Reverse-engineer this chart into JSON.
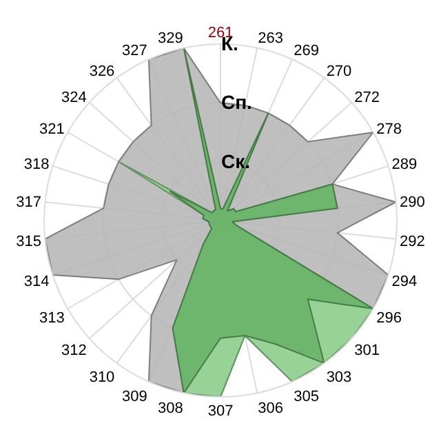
{
  "chart_data": {
    "type": "radar",
    "categories": [
      "261",
      "263",
      "269",
      "270",
      "272",
      "278",
      "289",
      "290",
      "292",
      "294",
      "296",
      "301",
      "303",
      "305",
      "306",
      "307",
      "308",
      "309",
      "310",
      "312",
      "313",
      "314",
      "315",
      "317",
      "318",
      "321",
      "324",
      "326",
      "327",
      "329"
    ],
    "ylim": [
      0,
      3
    ],
    "yticks": [
      {
        "value": 1,
        "label": "Ск."
      },
      {
        "value": 2,
        "label": "Сп."
      },
      {
        "value": 3,
        "label": "К."
      }
    ],
    "grid": true,
    "series": [
      {
        "color": "#b4b4b4",
        "values": [
          2.0,
          2.0,
          2.0,
          2.0,
          2.0,
          3.0,
          2.0,
          3.0,
          2.0,
          3.0,
          3.0,
          3.0,
          3.0,
          3.0,
          2.0,
          3.0,
          3.0,
          3.0,
          2.0,
          1.0,
          2.0,
          3.0,
          3.0,
          2.0,
          2.0,
          2.0,
          2.0,
          2.0,
          3.0,
          3.0
        ]
      },
      {
        "color": "#8fd68f",
        "values": [
          0.2,
          0.2,
          2.0,
          0.2,
          0.3,
          0.3,
          2.0,
          2.0,
          0.2,
          0.3,
          3.0,
          3.0,
          3.0,
          3.0,
          2.0,
          3.0,
          3.0,
          2.0,
          0.5,
          0.2,
          0.2,
          0.2,
          0.2,
          0.3,
          0.3,
          2.0,
          0.2,
          0.2,
          0.2,
          3.0
        ]
      },
      {
        "color": "#66b066",
        "values": [
          0.2,
          0.2,
          2.0,
          0.2,
          0.3,
          0.3,
          2.0,
          2.0,
          0.2,
          0.3,
          3.0,
          2.0,
          3.0,
          2.3,
          2.0,
          2.0,
          3.0,
          2.0,
          0.5,
          0.2,
          0.2,
          0.2,
          0.2,
          0.3,
          0.3,
          1.0,
          0.2,
          0.2,
          0.2,
          3.0
        ]
      }
    ]
  }
}
